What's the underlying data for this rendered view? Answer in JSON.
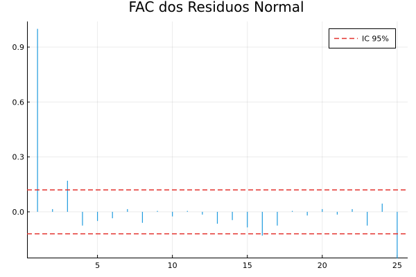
{
  "chart_data": {
    "type": "bar",
    "title": "FAC dos Residuos Normal",
    "xlabel": "",
    "ylabel": "",
    "xlim": [
      0.3,
      25.7
    ],
    "ylim": [
      -0.25,
      1.04
    ],
    "xticks": [
      5,
      10,
      15,
      20,
      25
    ],
    "yticks": [
      0.0,
      0.3,
      0.6,
      0.9
    ],
    "xtick_labels": [
      "5",
      "10",
      "15",
      "20",
      "25"
    ],
    "ytick_labels": [
      "0.0",
      "0.3",
      "0.6",
      "0.9"
    ],
    "grid": true,
    "legend_position": "top-right",
    "series": [
      {
        "color": "#1f9bde",
        "x": [
          1,
          2,
          3,
          4,
          5,
          6,
          7,
          8,
          9,
          10,
          11,
          12,
          13,
          14,
          15,
          16,
          17,
          18,
          19,
          20,
          21,
          22,
          23,
          24,
          25
        ],
        "values": [
          1.0,
          0.015,
          0.17,
          -0.075,
          -0.05,
          -0.035,
          0.015,
          -0.06,
          0.005,
          -0.025,
          0.005,
          -0.015,
          -0.065,
          -0.045,
          -0.085,
          -0.13,
          -0.075,
          0.005,
          -0.02,
          0.015,
          -0.015,
          0.015,
          -0.075,
          0.045,
          -0.255
        ]
      }
    ],
    "reference_lines": {
      "name": "IC 95%",
      "color": "#e3312d",
      "values": [
        0.12,
        -0.12
      ]
    }
  }
}
